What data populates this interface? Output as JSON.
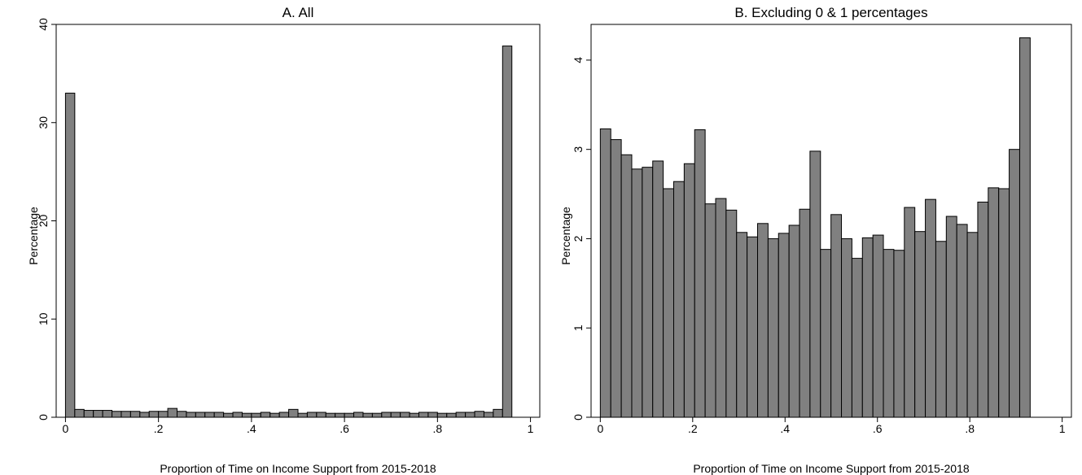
{
  "chart_data": [
    {
      "type": "bar",
      "title": "A. All",
      "xlabel": "Proportion of Time on Income Support from 2015-2018",
      "ylabel": "Percentage",
      "xlim": [
        -0.02,
        1.02
      ],
      "ylim": [
        0,
        40
      ],
      "xticks": [
        0,
        0.2,
        0.4,
        0.6,
        0.8,
        1
      ],
      "xtick_labels": [
        "0",
        ".2",
        ".4",
        ".6",
        ".8",
        "1"
      ],
      "yticks": [
        0,
        10,
        20,
        30,
        40
      ],
      "ytick_labels": [
        "0",
        "10",
        "20",
        "30",
        "40"
      ],
      "grid": false,
      "bar_color": "#808080",
      "bin_start": 0,
      "bin_width": 0.02,
      "values": [
        33.0,
        0.8,
        0.7,
        0.7,
        0.7,
        0.6,
        0.6,
        0.6,
        0.5,
        0.6,
        0.6,
        0.9,
        0.6,
        0.5,
        0.5,
        0.5,
        0.5,
        0.4,
        0.5,
        0.4,
        0.4,
        0.5,
        0.4,
        0.5,
        0.8,
        0.4,
        0.5,
        0.5,
        0.4,
        0.4,
        0.4,
        0.5,
        0.4,
        0.4,
        0.5,
        0.5,
        0.5,
        0.4,
        0.5,
        0.5,
        0.4,
        0.4,
        0.5,
        0.5,
        0.6,
        0.5,
        0.8,
        37.8
      ]
    },
    {
      "type": "bar",
      "title": "B. Excluding 0 & 1 percentages",
      "xlabel": "Proportion of Time on Income Support from 2015-2018",
      "ylabel": "Percentage",
      "xlim": [
        -0.02,
        1.02
      ],
      "ylim": [
        0,
        4.4
      ],
      "xticks": [
        0,
        0.2,
        0.4,
        0.6,
        0.8,
        1
      ],
      "xtick_labels": [
        "0",
        ".2",
        ".4",
        ".6",
        ".8",
        "1"
      ],
      "yticks": [
        0,
        1,
        2,
        3,
        4
      ],
      "ytick_labels": [
        "0",
        "1",
        "2",
        "3",
        "4"
      ],
      "grid": false,
      "bar_color": "#808080",
      "bin_start": 0,
      "bin_width": 0.0227,
      "values": [
        3.23,
        3.11,
        2.94,
        2.78,
        2.8,
        2.87,
        2.56,
        2.64,
        2.84,
        3.22,
        2.39,
        2.45,
        2.32,
        2.07,
        2.02,
        2.17,
        2.0,
        2.06,
        2.15,
        2.33,
        2.98,
        1.88,
        2.27,
        2.0,
        1.78,
        2.01,
        2.04,
        1.88,
        1.87,
        2.35,
        2.08,
        2.44,
        1.97,
        2.25,
        2.16,
        2.07,
        2.41,
        2.57,
        2.56,
        3.0,
        4.25
      ]
    }
  ]
}
